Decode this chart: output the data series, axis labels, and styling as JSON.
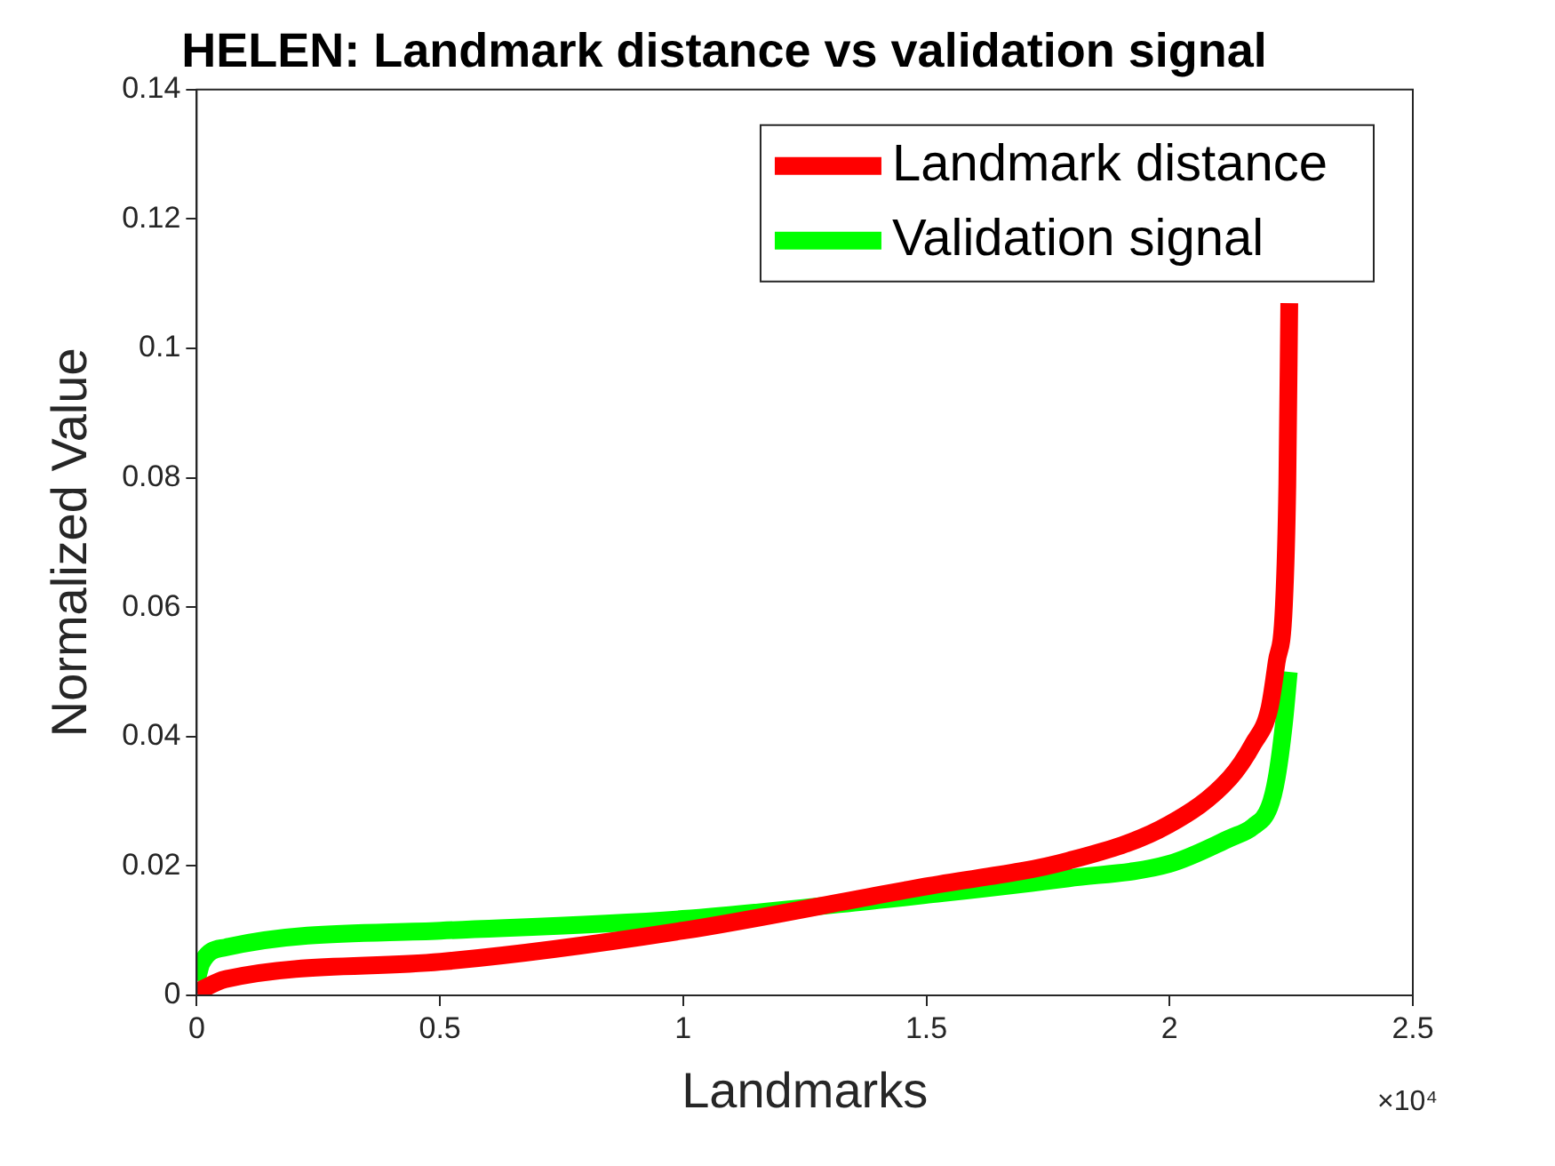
{
  "chart_data": {
    "type": "line",
    "title": "HELEN: Landmark distance vs validation signal",
    "xlabel": "Landmarks",
    "ylabel": "Normalized Value",
    "xlim": [
      0,
      2.5
    ],
    "xticks": [
      0,
      0.5,
      1,
      1.5,
      2,
      2.5
    ],
    "ylim": [
      0,
      0.14
    ],
    "yticks": [
      0,
      0.02,
      0.04,
      0.06,
      0.08,
      0.1,
      0.12,
      0.14
    ],
    "annotations": [
      "×10⁴"
    ],
    "legend": "top right",
    "grid": false,
    "marker": "none",
    "line_style": "solid",
    "series": [
      {
        "name": "Landmark distance",
        "color": "#ff0000",
        "x": [
          0,
          0.059,
          0.5015,
          0.999,
          1.423,
          1.497,
          1.792,
          1.9985,
          2.124,
          2.172,
          2.205,
          2.22,
          2.235,
          2.242,
          2.246
        ],
        "values": [
          0.0005,
          0.0025,
          0.0052,
          0.01,
          0.0158,
          0.0168,
          0.0208,
          0.0264,
          0.0336,
          0.0389,
          0.0443,
          0.0515,
          0.0603,
          0.079,
          0.107
        ]
      },
      {
        "name": "Validation signal",
        "color": "#00ff00",
        "x": [
          0,
          0.01,
          0.059,
          0.5015,
          0.999,
          1.423,
          1.497,
          1.792,
          1.9985,
          2.124,
          2.172,
          2.205,
          2.22,
          2.235,
          2.245
        ],
        "values": [
          0.0023,
          0.005,
          0.0074,
          0.01,
          0.0118,
          0.0149,
          0.0155,
          0.0181,
          0.0203,
          0.0243,
          0.0261,
          0.0291,
          0.0336,
          0.042,
          0.05
        ]
      }
    ]
  }
}
